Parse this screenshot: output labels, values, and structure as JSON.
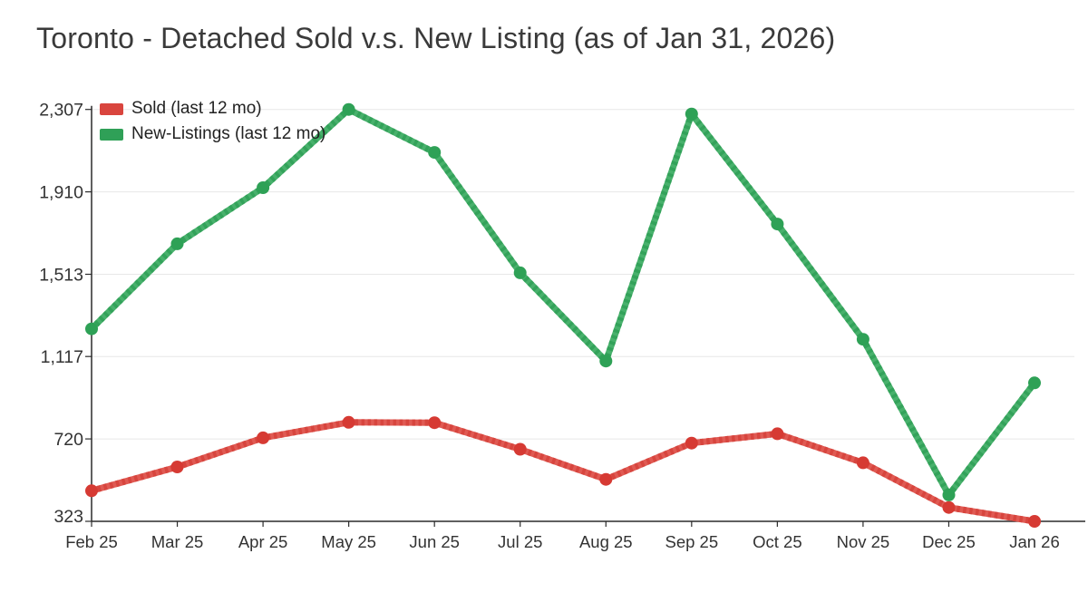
{
  "title": "Toronto - Detached Sold v.s. New Listing (as of Jan 31, 2026)",
  "legend": {
    "position": "top-left",
    "items": [
      {
        "label": "Sold (last 12 mo)",
        "swatch_color": "#d9453e"
      },
      {
        "label": "New-Listings (last 12 mo)",
        "swatch_color": "#2fa057"
      }
    ]
  },
  "chart_data": {
    "type": "line",
    "title": "Toronto - Detached Sold v.s. New Listing (as of Jan 31, 2026)",
    "categories": [
      "Feb 25",
      "Mar 25",
      "Apr 25",
      "May 25",
      "Jun 25",
      "Jul 25",
      "Aug 25",
      "Sep 25",
      "Oct 25",
      "Nov 25",
      "Dec 25",
      "Jan 26"
    ],
    "series": [
      {
        "name": "Sold (last 12 mo)",
        "values": [
          470,
          585,
          725,
          800,
          798,
          670,
          525,
          700,
          745,
          605,
          390,
          323
        ],
        "line_color": "#e05a53",
        "stripe_color": "#d7453e",
        "marker_color": "#d63a33"
      },
      {
        "name": "New-Listings (last 12 mo)",
        "values": [
          1250,
          1660,
          1930,
          2307,
          2100,
          1520,
          1095,
          2285,
          1755,
          1200,
          450,
          990
        ],
        "line_color": "#48b16c",
        "stripe_color": "#33a25a",
        "marker_color": "#2ea156"
      }
    ],
    "xlabel": "",
    "ylabel": "",
    "ylim": [
      323,
      2307
    ],
    "y_ticks": [
      323,
      720,
      1117,
      1513,
      1910,
      2307
    ],
    "y_tick_labels": [
      "323",
      "720",
      "1,117",
      "1,513",
      "1,910",
      "2,307"
    ],
    "grid": true,
    "gridline_color": "#e7e7e7",
    "axis_color": "#2b2b2b",
    "tick_label_color": "#333333",
    "legend_position": "top-left"
  }
}
